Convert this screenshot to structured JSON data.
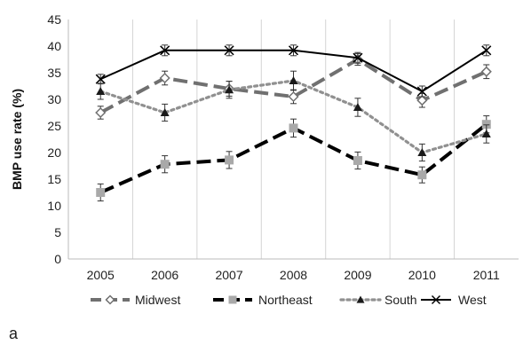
{
  "chart_data": {
    "type": "line",
    "title": "",
    "xlabel": "",
    "ylabel": "BMP use rate (%)",
    "panel_label": "a",
    "categories": [
      "2005",
      "2006",
      "2007",
      "2008",
      "2009",
      "2010",
      "2011"
    ],
    "ylim": [
      0,
      45
    ],
    "yticks": [
      0,
      5,
      10,
      15,
      20,
      25,
      30,
      35,
      40,
      45
    ],
    "grid": "vertical",
    "legend_position": "bottom",
    "series": [
      {
        "name": "Midwest",
        "values": [
          27.5,
          34.0,
          32.0,
          30.5,
          37.5,
          29.8,
          35.2
        ],
        "errors": [
          1.2,
          1.3,
          1.4,
          1.3,
          1.1,
          1.3,
          1.3
        ],
        "color": "#707070",
        "dash": "long-dash",
        "marker": "diamond"
      },
      {
        "name": "Northeast",
        "values": [
          12.5,
          17.8,
          18.6,
          24.6,
          18.5,
          15.8,
          25.3
        ],
        "errors": [
          1.6,
          1.6,
          1.6,
          1.7,
          1.6,
          1.5,
          1.6
        ],
        "color": "#000000",
        "dash": "long-dash",
        "marker": "square"
      },
      {
        "name": "South",
        "values": [
          31.5,
          27.5,
          31.8,
          33.5,
          28.5,
          20.0,
          23.5
        ],
        "errors": [
          1.5,
          1.6,
          1.6,
          1.8,
          1.7,
          1.6,
          1.7
        ],
        "color": "#909090",
        "dash": "dotted",
        "marker": "triangle"
      },
      {
        "name": "West",
        "values": [
          33.8,
          39.2,
          39.2,
          39.2,
          37.8,
          31.5,
          39.2
        ],
        "errors": [
          0.9,
          1.0,
          1.0,
          1.0,
          1.0,
          1.0,
          1.0
        ],
        "color": "#000000",
        "dash": "solid",
        "marker": "x"
      }
    ]
  }
}
